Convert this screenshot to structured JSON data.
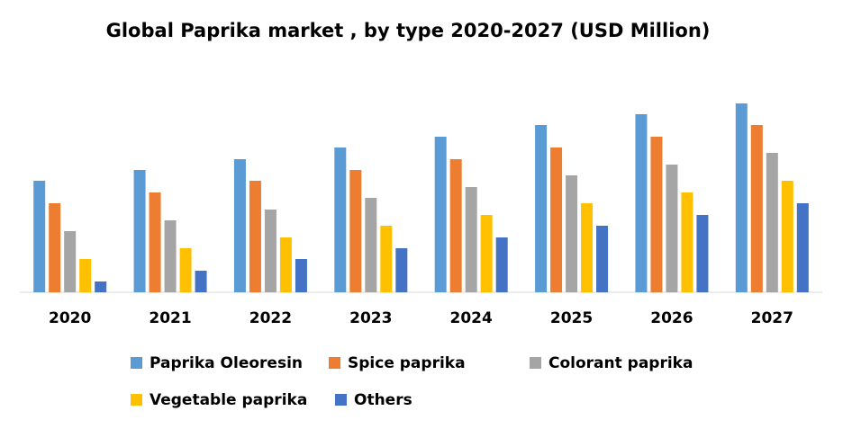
{
  "chart_data": {
    "type": "bar",
    "title": "Global Paprika market , by type 2020-2027 (USD Million)",
    "categories": [
      "2020",
      "2021",
      "2022",
      "2023",
      "2024",
      "2025",
      "2026",
      "2027"
    ],
    "series": [
      {
        "name": "Paprika Oleoresin",
        "color": "#5b9bd5",
        "values": [
          124,
          136,
          148,
          161,
          173,
          186,
          198,
          210
        ]
      },
      {
        "name": "Spice paprika",
        "color": "#ed7d31",
        "values": [
          99,
          111,
          124,
          136,
          148,
          161,
          173,
          186
        ]
      },
      {
        "name": "Colorant paprika",
        "color": "#a5a5a5",
        "values": [
          68,
          80,
          92,
          105,
          117,
          130,
          142,
          155
        ]
      },
      {
        "name": "Vegetable paprika",
        "color": "#ffc000",
        "values": [
          37,
          49,
          61,
          74,
          86,
          99,
          111,
          124
        ]
      },
      {
        "name": "Others",
        "color": "#4472c4",
        "values": [
          12,
          24,
          37,
          49,
          61,
          74,
          86,
          99
        ]
      }
    ]
  }
}
